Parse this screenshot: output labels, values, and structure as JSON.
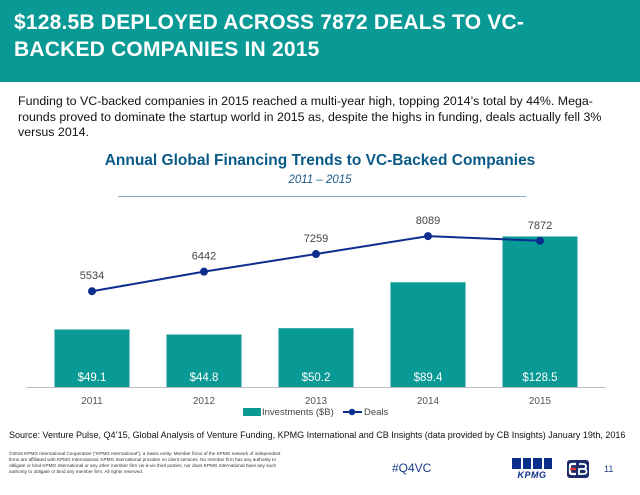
{
  "header": {
    "title": "$128.5B DEPLOYED ACROSS 7872 DEALS TO VC-BACKED COMPANIES IN 2015"
  },
  "intro": "Funding to VC-backed companies in 2015 reached a multi-year high, topping 2014’s total by 44%. Mega-rounds proved to dominate the startup world in 2015 as, despite the highs in funding, deals actually fell 3% versus 2014.",
  "chart_data": {
    "type": "bar",
    "title": "Annual Global Financing Trends to VC-Backed Companies",
    "subtitle": "2011 – 2015",
    "categories": [
      "2011",
      "2012",
      "2013",
      "2014",
      "2015"
    ],
    "series": [
      {
        "name": "Investments ($B)",
        "type": "bar",
        "axis": "left",
        "values": [
          49.1,
          44.8,
          50.2,
          89.4,
          128.5
        ],
        "labels": [
          "$49.1",
          "$44.8",
          "$50.2",
          "$89.4",
          "$128.5"
        ]
      },
      {
        "name": "Deals",
        "type": "line",
        "axis": "right",
        "values": [
          5534,
          6442,
          7259,
          8089,
          7872
        ],
        "labels": [
          "5534",
          "6442",
          "7259",
          "8089",
          "7872"
        ]
      }
    ],
    "ylim": [
      0,
      140
    ],
    "ylim_right": [
      0,
      9000
    ],
    "grid": false,
    "legend_position": "bottom"
  },
  "colors": {
    "header_bg": "#0a9a95",
    "bar": "#0a9a95",
    "line": "#0b2d8e",
    "title": "#0a5a88"
  },
  "source": "Source: Venture Pulse, Q4’15, Global Analysis of Venture Funding, KPMG International and CB Insights (data provided by CB Insights) January 19th, 2016",
  "disclaimer": "©2016 KPMG International Cooperative (“KPMG International”), a Swiss entity. Member firms of the KPMG network of independent firms are affiliated with KPMG International. KPMG International provides no client services. No member firm has any authority to obligate or bind KPMG International or any other member firm vis-à-vis third parties, nor does KPMG International have any such authority to obligate or bind any member firm. All rights reserved.",
  "footer": {
    "hashtag": "#Q4VC",
    "logo_text": "KPMG",
    "page_number": "11"
  }
}
